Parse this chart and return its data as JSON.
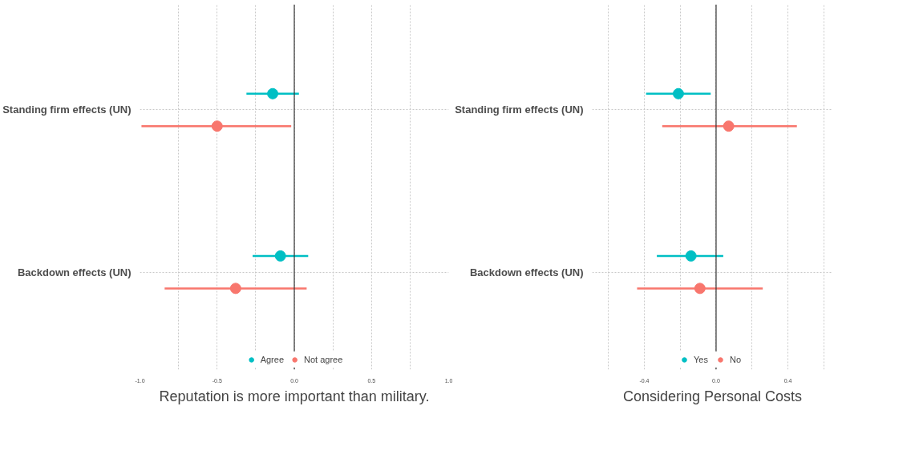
{
  "chart_data": [
    {
      "type": "scatter",
      "orientation": "horizontal",
      "categories": [
        "Standing firm effects (UN)",
        "Backdown effects (UN)"
      ],
      "xlabel": "Reputation is more important than military.",
      "xlim": [
        -1.0,
        1.0
      ],
      "xticks": [
        {
          "value": -1.0,
          "label": "-1.0"
        },
        {
          "value": -0.75,
          "label": null
        },
        {
          "value": -0.5,
          "label": "-0.5"
        },
        {
          "value": -0.25,
          "label": null
        },
        {
          "value": 0,
          "label": "0.0"
        },
        {
          "value": 0.25,
          "label": null
        },
        {
          "value": 0.5,
          "label": "0.5"
        },
        {
          "value": 0.75,
          "label": null
        },
        {
          "value": 1.0,
          "label": "1.0"
        }
      ],
      "grid": true,
      "legend": "bottom",
      "marker": "circle",
      "ref_lines": [
        {
          "axis": "x",
          "value": 0,
          "color": "#333333"
        }
      ],
      "series": [
        {
          "name": "Agree",
          "color": "#00bfc4",
          "values": [
            -0.14,
            -0.09
          ],
          "errors": [
            [
              -0.31,
              0.03
            ],
            [
              -0.27,
              0.09
            ]
          ]
        },
        {
          "name": "Not agree",
          "color": "#f8766d",
          "values": [
            -0.5,
            -0.38
          ],
          "errors": [
            [
              -0.99,
              -0.02
            ],
            [
              -0.84,
              0.08
            ]
          ]
        }
      ]
    },
    {
      "type": "scatter",
      "orientation": "horizontal",
      "categories": [
        "Standing firm effects (UN)",
        "Backdown effects (UN)"
      ],
      "xlabel": "Considering Personal Costs",
      "xlim": [
        -0.69,
        0.65
      ],
      "xticks": [
        {
          "value": -0.6,
          "label": null
        },
        -0.4,
        {
          "value": -0.2,
          "label": null
        },
        {
          "value": 0,
          "label": "0.0"
        },
        {
          "value": 0.2,
          "label": null
        },
        0.4,
        {
          "value": 0.6,
          "label": null
        }
      ],
      "grid": true,
      "legend": "bottom",
      "marker": "circle",
      "ref_lines": [
        {
          "axis": "x",
          "value": 0,
          "color": "#333333"
        }
      ],
      "series": [
        {
          "name": "Yes",
          "color": "#00bfc4",
          "values": [
            -0.21,
            -0.14
          ],
          "errors": [
            [
              -0.39,
              -0.03
            ],
            [
              -0.33,
              0.04
            ]
          ]
        },
        {
          "name": "No",
          "color": "#f8766d",
          "values": [
            0.07,
            -0.09
          ],
          "errors": [
            [
              -0.3,
              0.45
            ],
            [
              -0.44,
              0.26
            ]
          ]
        }
      ]
    }
  ]
}
